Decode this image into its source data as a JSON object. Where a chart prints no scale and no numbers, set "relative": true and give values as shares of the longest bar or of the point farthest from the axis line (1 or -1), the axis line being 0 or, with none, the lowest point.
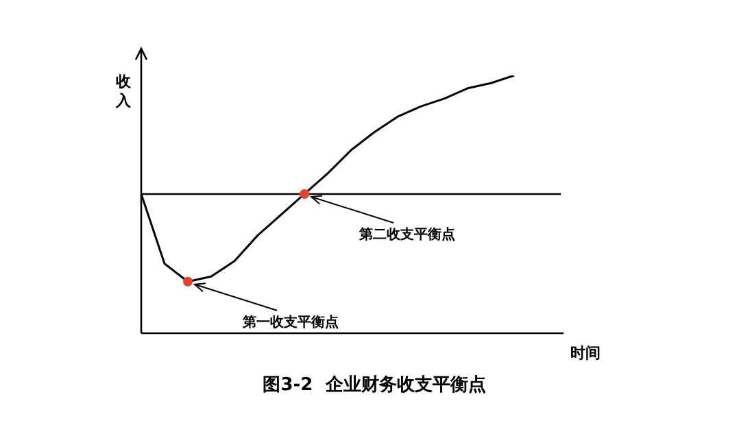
{
  "chart_data": {
    "type": "line",
    "title": "图3-2  企业财务收支平衡点",
    "xlabel": "时间",
    "ylabel": "收入",
    "relative": true,
    "categories": [
      null,
      null,
      null,
      null,
      null,
      null,
      null,
      null,
      null,
      null,
      null,
      null,
      null,
      null,
      null,
      null,
      null,
      null,
      null
    ],
    "series": [
      {
        "color": "#000000",
        "values": [
          0.54,
          0.27,
          0.2,
          0.22,
          0.28,
          0.38,
          0.46,
          0.54,
          0.62,
          0.71,
          0.78,
          0.84,
          0.88,
          0.91,
          0.95,
          0.97,
          1,
          null,
          null
        ]
      }
    ],
    "ref_lines": [
      {
        "axis": "y",
        "value": 0.54,
        "color": "#000000"
      }
    ],
    "annotations": [
      "第一收支平衡点",
      "第二收支平衡点"
    ],
    "legend": false,
    "grid": false
  }
}
